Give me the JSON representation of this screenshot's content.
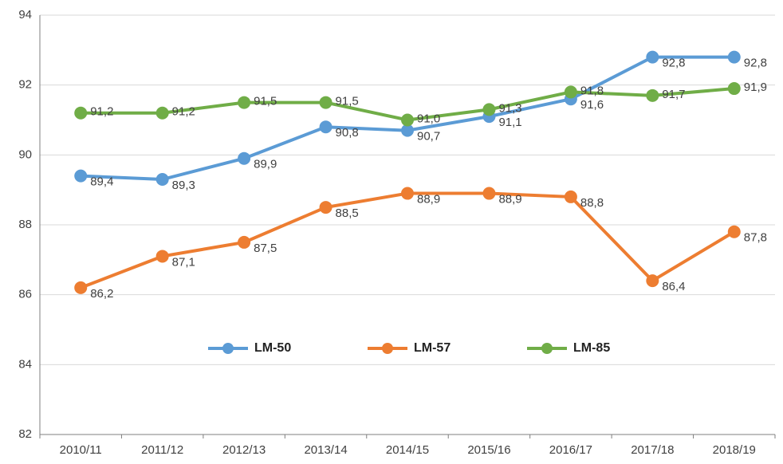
{
  "chart_data": {
    "type": "line",
    "categories": [
      "2010/11",
      "2011/12",
      "2012/13",
      "2013/14",
      "2014/15",
      "2015/16",
      "2016/17",
      "2017/18",
      "2018/19"
    ],
    "series": [
      {
        "name": "LM-50",
        "color": "#5b9bd5",
        "values": [
          89.4,
          89.3,
          89.9,
          90.8,
          90.7,
          91.1,
          91.6,
          92.8,
          92.8
        ],
        "value_labels": [
          "89,4",
          "89,3",
          "89,9",
          "90,8",
          "90,7",
          "91,1",
          "91,6",
          "92,8",
          "92,8"
        ]
      },
      {
        "name": "LM-57",
        "color": "#ed7d31",
        "values": [
          86.2,
          87.1,
          87.5,
          88.5,
          88.9,
          88.9,
          88.8,
          86.4,
          87.8
        ],
        "value_labels": [
          "86,2",
          "87,1",
          "87,5",
          "88,5",
          "88,9",
          "88,9",
          "88,8",
          "86,4",
          "87,8"
        ]
      },
      {
        "name": "LM-85",
        "color": "#70ad47",
        "values": [
          91.2,
          91.2,
          91.5,
          91.5,
          91.0,
          91.3,
          91.8,
          91.7,
          91.9
        ],
        "value_labels": [
          "91,2",
          "91,2",
          "91,5",
          "91,5",
          "91,0",
          "91,3",
          "91,8",
          "91,7",
          "91,9"
        ]
      }
    ],
    "ylim": [
      82,
      94
    ],
    "yticks": [
      82,
      84,
      86,
      88,
      90,
      92,
      94
    ],
    "grid": true,
    "legend": "center"
  }
}
